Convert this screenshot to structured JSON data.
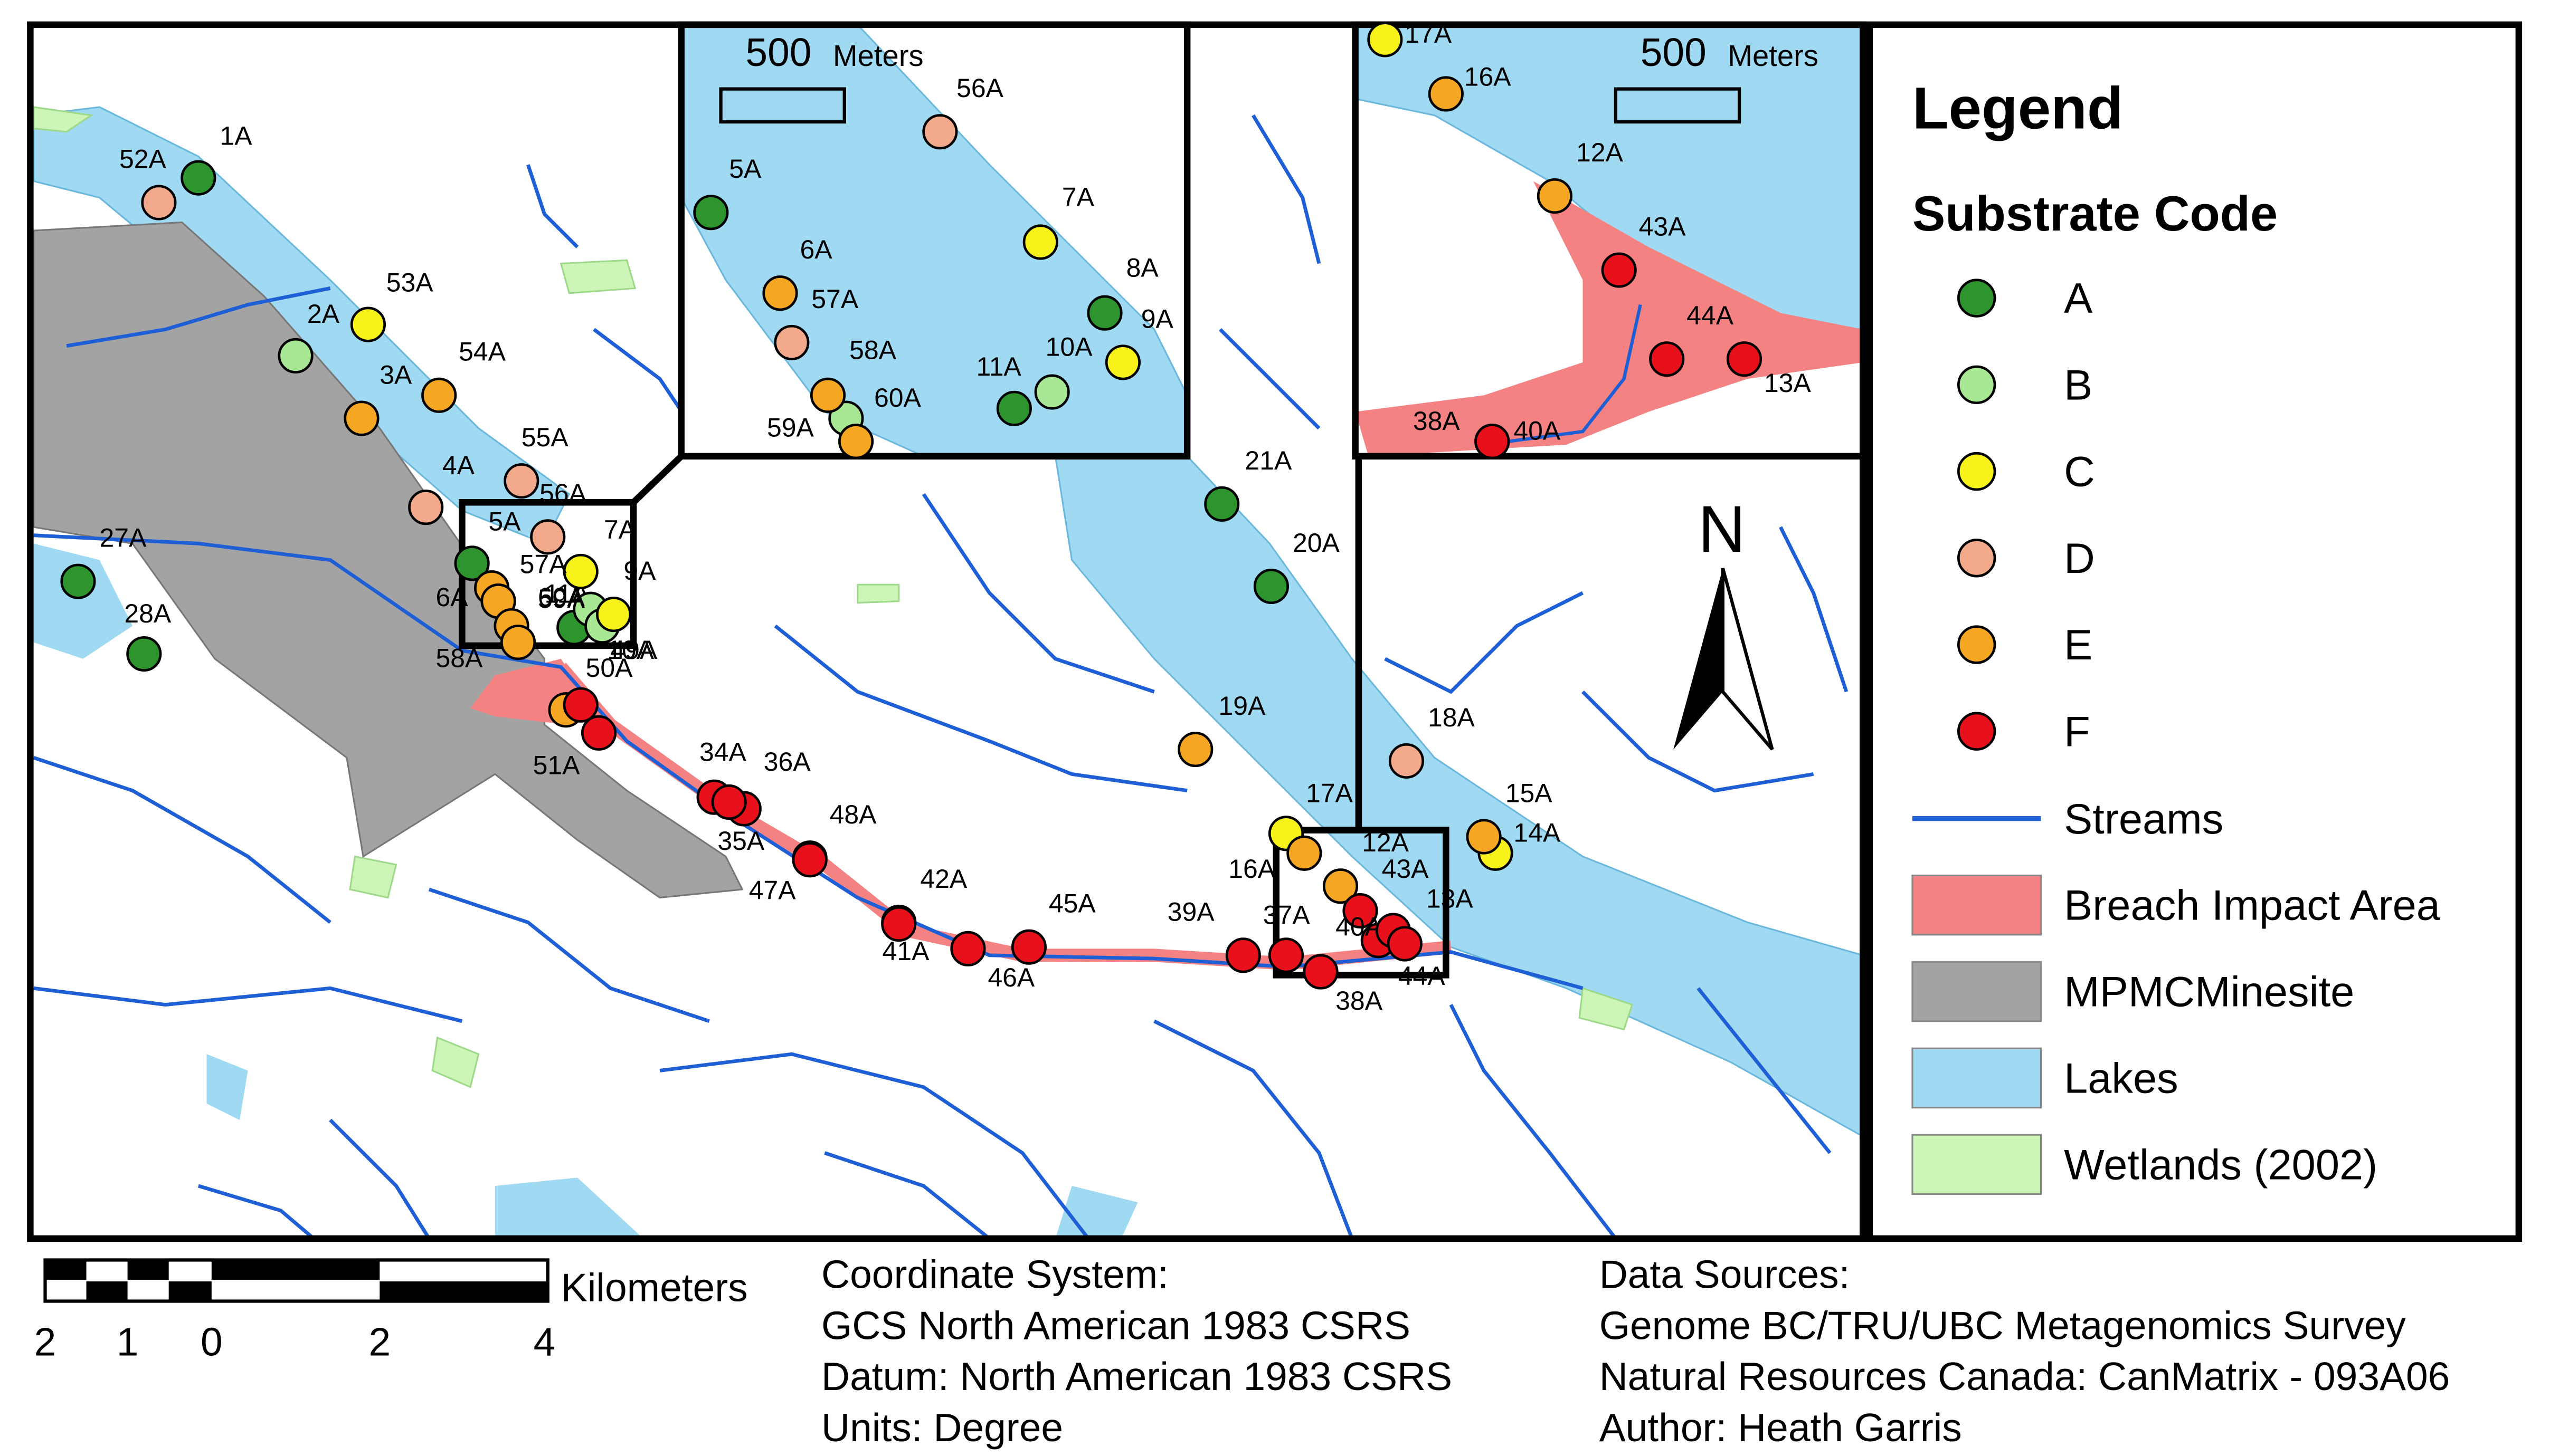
{
  "legend": {
    "title": "Legend",
    "subtitle": "Substrate Code",
    "classes": [
      {
        "code": "A",
        "color": "#2e952e",
        "sites": [
          "1A",
          "27A",
          "28A",
          "5A",
          "21A",
          "20A",
          "11A",
          "5A",
          "8A",
          "11A"
        ]
      },
      {
        "code": "B",
        "color": "#a8e894",
        "sites": [
          "2A",
          "60A",
          "10A",
          "10A",
          "60A"
        ]
      },
      {
        "code": "C",
        "color": "#f7f21a",
        "sites": [
          "53A",
          "7A",
          "9A",
          "17A",
          "14A",
          "7A",
          "9A",
          "17A"
        ]
      },
      {
        "code": "D",
        "color": "#f2a98c",
        "sites": [
          "52A",
          "4A",
          "55A",
          "56A",
          "18A",
          "56A",
          "57A"
        ]
      },
      {
        "code": "E",
        "color": "#f5a623",
        "sites": [
          "3A",
          "54A",
          "57A",
          "6A",
          "59A",
          "58A",
          "50A",
          "19A",
          "15A",
          "16A",
          "12A",
          "6A",
          "58A",
          "59A",
          "16A",
          "12A"
        ]
      },
      {
        "code": "F",
        "color": "#e8101a",
        "sites": [
          "49A",
          "51A",
          "34A",
          "36A",
          "35A",
          "48A",
          "47A",
          "42A",
          "41A",
          "46A",
          "45A",
          "39A",
          "37A",
          "38A",
          "43A",
          "40A",
          "13A",
          "44A",
          "43A",
          "44A",
          "13A",
          "38A",
          "40A"
        ]
      }
    ],
    "layers": [
      {
        "label": "Streams",
        "color": "#1f5fd6"
      },
      {
        "label": "Breach Impact Area",
        "color": "#f58282"
      },
      {
        "label": "MPMCMinesite",
        "color": "#a3a3a3"
      },
      {
        "label": "Lakes",
        "color": "#9fd9f2"
      },
      {
        "label": "Wetlands (2002)",
        "color": "#cdf5b8"
      }
    ]
  },
  "north": "N",
  "inset_scale": {
    "value": "500",
    "unit": "Meters"
  },
  "scale_bar": {
    "ticks": [
      "2",
      "1",
      "0",
      "2",
      "4"
    ],
    "unit": "Kilometers"
  },
  "coordinate_info": [
    "Coordinate System:",
    "GCS North American 1983 CSRS",
    "Datum: North American 1983 CSRS",
    "Units: Degree"
  ],
  "data_sources": [
    "Data Sources:",
    "Genome BC/TRU/UBC Metagenomics Survey",
    "Natural Resources Canada: CanMatrix - 093A06",
    "Author: Heath Garris"
  ]
}
